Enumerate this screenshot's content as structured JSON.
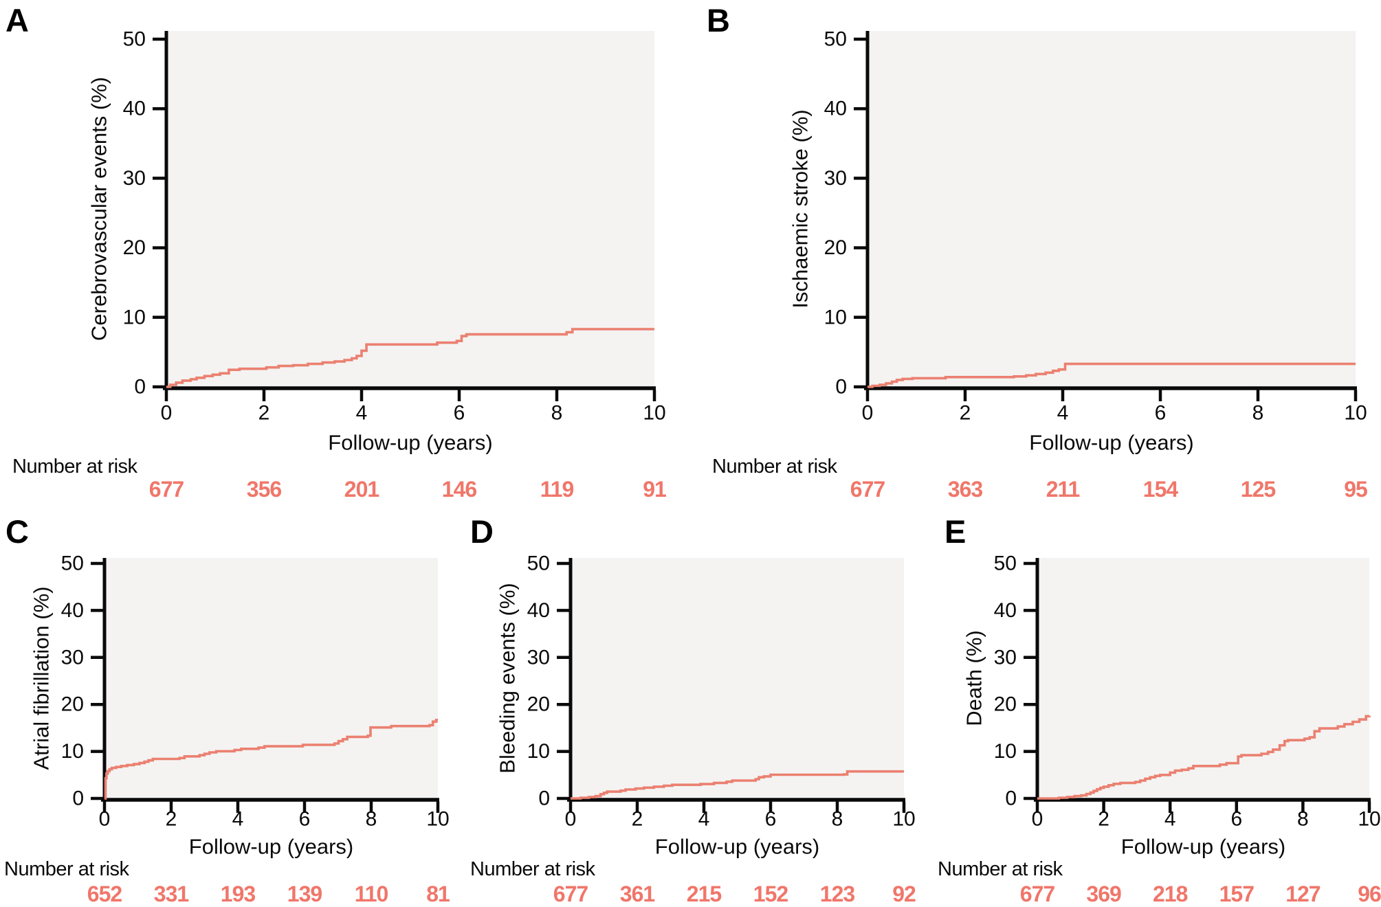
{
  "figure": {
    "number_at_risk_label": "Number at risk",
    "x_axis_label": "Follow-up (years)"
  },
  "colors": {
    "curve": "#EB8070",
    "risk_numbers": "#F0766A",
    "plot_bg": "#F4F3F2",
    "axis": "#0a0a0a",
    "text": "#0a0a0a"
  },
  "chart_data": [
    {
      "panel": "A",
      "type": "line",
      "ylabel": "Cerebrovascular events (%)",
      "xlabel": "Follow-up (years)",
      "xlim": [
        0,
        10
      ],
      "ylim": [
        0,
        50
      ],
      "x_ticks": [
        0,
        2,
        4,
        6,
        8,
        10
      ],
      "y_ticks": [
        0,
        10,
        20,
        30,
        40,
        50
      ],
      "steps": [
        [
          0.08,
          0.3
        ],
        [
          0.2,
          0.6
        ],
        [
          0.33,
          0.9
        ],
        [
          0.5,
          1.1
        ],
        [
          0.62,
          1.3
        ],
        [
          0.78,
          1.55
        ],
        [
          0.95,
          1.75
        ],
        [
          1.1,
          1.95
        ],
        [
          1.28,
          2.45
        ],
        [
          1.5,
          2.6
        ],
        [
          2.05,
          2.8
        ],
        [
          2.3,
          3.0
        ],
        [
          2.6,
          3.1
        ],
        [
          2.9,
          3.3
        ],
        [
          3.2,
          3.5
        ],
        [
          3.45,
          3.65
        ],
        [
          3.65,
          3.85
        ],
        [
          3.8,
          4.1
        ],
        [
          3.9,
          4.45
        ],
        [
          4.0,
          5.2
        ],
        [
          4.1,
          6.1
        ],
        [
          5.55,
          6.35
        ],
        [
          5.95,
          6.6
        ],
        [
          6.05,
          7.3
        ],
        [
          6.15,
          7.55
        ],
        [
          8.2,
          7.85
        ],
        [
          8.32,
          8.3
        ],
        [
          10,
          8.3
        ]
      ],
      "number_at_risk": {
        "times": [
          0,
          2,
          4,
          6,
          8,
          10
        ],
        "values": [
          677,
          356,
          201,
          146,
          119,
          91
        ]
      }
    },
    {
      "panel": "B",
      "type": "line",
      "ylabel": "Ischaemic stroke (%)",
      "xlabel": "Follow-up (years)",
      "xlim": [
        0,
        10
      ],
      "ylim": [
        0,
        50
      ],
      "x_ticks": [
        0,
        2,
        4,
        6,
        8,
        10
      ],
      "y_ticks": [
        0,
        10,
        20,
        30,
        40,
        50
      ],
      "steps": [
        [
          0.1,
          0.15
        ],
        [
          0.25,
          0.3
        ],
        [
          0.38,
          0.5
        ],
        [
          0.5,
          0.75
        ],
        [
          0.6,
          1.0
        ],
        [
          0.72,
          1.15
        ],
        [
          0.92,
          1.25
        ],
        [
          1.6,
          1.4
        ],
        [
          3.0,
          1.5
        ],
        [
          3.25,
          1.65
        ],
        [
          3.45,
          1.85
        ],
        [
          3.65,
          2.05
        ],
        [
          3.8,
          2.3
        ],
        [
          3.92,
          2.5
        ],
        [
          4.05,
          3.3
        ],
        [
          10,
          3.3
        ]
      ],
      "number_at_risk": {
        "times": [
          0,
          2,
          4,
          6,
          8,
          10
        ],
        "values": [
          677,
          363,
          211,
          154,
          125,
          95
        ]
      }
    },
    {
      "panel": "C",
      "type": "line",
      "ylabel": "Atrial fibrillation (%)",
      "xlabel": "Follow-up (years)",
      "xlim": [
        0,
        10
      ],
      "ylim": [
        0,
        50
      ],
      "x_ticks": [
        0,
        2,
        4,
        6,
        8,
        10
      ],
      "y_ticks": [
        0,
        10,
        20,
        30,
        40,
        50
      ],
      "steps": [
        [
          0.03,
          4.3
        ],
        [
          0.06,
          5.3
        ],
        [
          0.1,
          5.8
        ],
        [
          0.15,
          6.2
        ],
        [
          0.22,
          6.5
        ],
        [
          0.35,
          6.7
        ],
        [
          0.5,
          6.9
        ],
        [
          0.68,
          7.1
        ],
        [
          0.88,
          7.3
        ],
        [
          1.05,
          7.55
        ],
        [
          1.2,
          7.8
        ],
        [
          1.32,
          8.1
        ],
        [
          1.45,
          8.4
        ],
        [
          2.25,
          8.6
        ],
        [
          2.4,
          8.95
        ],
        [
          2.85,
          9.2
        ],
        [
          3.0,
          9.5
        ],
        [
          3.15,
          9.8
        ],
        [
          3.35,
          10.05
        ],
        [
          3.9,
          10.3
        ],
        [
          4.1,
          10.55
        ],
        [
          4.62,
          10.8
        ],
        [
          4.8,
          11.1
        ],
        [
          5.95,
          11.4
        ],
        [
          6.9,
          11.7
        ],
        [
          7.02,
          12.2
        ],
        [
          7.15,
          12.6
        ],
        [
          7.28,
          13.1
        ],
        [
          7.9,
          13.35
        ],
        [
          7.98,
          15.1
        ],
        [
          8.6,
          15.4
        ],
        [
          9.75,
          15.6
        ],
        [
          9.85,
          16.35
        ],
        [
          9.95,
          16.7
        ],
        [
          10,
          16.7
        ]
      ],
      "number_at_risk": {
        "times": [
          0,
          2,
          4,
          6,
          8,
          10
        ],
        "values": [
          652,
          331,
          193,
          139,
          110,
          81
        ]
      }
    },
    {
      "panel": "D",
      "type": "line",
      "ylabel": "Bleeding events (%)",
      "xlabel": "Follow-up (years)",
      "xlim": [
        0,
        10
      ],
      "ylim": [
        0,
        50
      ],
      "x_ticks": [
        0,
        2,
        4,
        6,
        8,
        10
      ],
      "y_ticks": [
        0,
        10,
        20,
        30,
        40,
        50
      ],
      "steps": [
        [
          0.3,
          0.15
        ],
        [
          0.55,
          0.3
        ],
        [
          0.75,
          0.5
        ],
        [
          0.9,
          0.9
        ],
        [
          1.0,
          1.2
        ],
        [
          1.1,
          1.45
        ],
        [
          1.5,
          1.65
        ],
        [
          1.65,
          1.9
        ],
        [
          1.95,
          2.1
        ],
        [
          2.2,
          2.3
        ],
        [
          2.5,
          2.5
        ],
        [
          2.8,
          2.7
        ],
        [
          3.05,
          2.9
        ],
        [
          3.9,
          3.05
        ],
        [
          4.3,
          3.3
        ],
        [
          4.68,
          3.55
        ],
        [
          4.85,
          3.8
        ],
        [
          5.55,
          4.1
        ],
        [
          5.65,
          4.5
        ],
        [
          5.8,
          4.7
        ],
        [
          6.0,
          5.05
        ],
        [
          8.2,
          5.1
        ],
        [
          8.3,
          5.75
        ],
        [
          10,
          5.75
        ]
      ],
      "number_at_risk": {
        "times": [
          0,
          2,
          4,
          6,
          8,
          10
        ],
        "values": [
          677,
          361,
          215,
          152,
          123,
          92
        ]
      }
    },
    {
      "panel": "E",
      "type": "line",
      "ylabel": "Death (%)",
      "xlabel": "Follow-up (years)",
      "xlim": [
        0,
        10
      ],
      "ylim": [
        0,
        50
      ],
      "x_ticks": [
        0,
        2,
        4,
        6,
        8,
        10
      ],
      "y_ticks": [
        0,
        10,
        20,
        30,
        40,
        50
      ],
      "steps": [
        [
          0.65,
          0.15
        ],
        [
          0.9,
          0.3
        ],
        [
          1.12,
          0.5
        ],
        [
          1.32,
          0.65
        ],
        [
          1.48,
          0.95
        ],
        [
          1.6,
          1.25
        ],
        [
          1.7,
          1.6
        ],
        [
          1.8,
          1.95
        ],
        [
          1.9,
          2.25
        ],
        [
          2.0,
          2.5
        ],
        [
          2.15,
          2.8
        ],
        [
          2.3,
          3.1
        ],
        [
          2.5,
          3.3
        ],
        [
          2.95,
          3.5
        ],
        [
          3.1,
          3.8
        ],
        [
          3.25,
          4.2
        ],
        [
          3.4,
          4.5
        ],
        [
          3.55,
          4.8
        ],
        [
          3.7,
          5.0
        ],
        [
          4.0,
          5.5
        ],
        [
          4.15,
          5.9
        ],
        [
          4.35,
          6.1
        ],
        [
          4.55,
          6.4
        ],
        [
          4.7,
          6.9
        ],
        [
          5.5,
          7.2
        ],
        [
          5.7,
          7.5
        ],
        [
          6.05,
          8.9
        ],
        [
          6.15,
          9.2
        ],
        [
          6.75,
          9.5
        ],
        [
          6.95,
          9.9
        ],
        [
          7.1,
          10.4
        ],
        [
          7.3,
          11.3
        ],
        [
          7.45,
          12.2
        ],
        [
          7.55,
          12.4
        ],
        [
          8.05,
          12.7
        ],
        [
          8.2,
          13.0
        ],
        [
          8.35,
          14.3
        ],
        [
          8.5,
          14.9
        ],
        [
          9.05,
          15.3
        ],
        [
          9.25,
          15.8
        ],
        [
          9.5,
          16.3
        ],
        [
          9.7,
          16.8
        ],
        [
          9.9,
          17.5
        ],
        [
          10,
          17.6
        ]
      ],
      "number_at_risk": {
        "times": [
          0,
          2,
          4,
          6,
          8,
          10
        ],
        "values": [
          677,
          369,
          218,
          157,
          127,
          96
        ]
      }
    }
  ]
}
